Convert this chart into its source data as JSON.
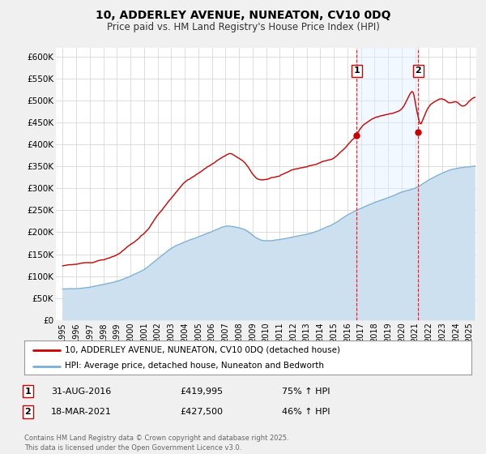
{
  "title": "10, ADDERLEY AVENUE, NUNEATON, CV10 0DQ",
  "subtitle": "Price paid vs. HM Land Registry's House Price Index (HPI)",
  "xlim": [
    1994.5,
    2025.5
  ],
  "ylim": [
    0,
    620000
  ],
  "yticks": [
    0,
    50000,
    100000,
    150000,
    200000,
    250000,
    300000,
    350000,
    400000,
    450000,
    500000,
    550000,
    600000
  ],
  "ytick_labels": [
    "£0",
    "£50K",
    "£100K",
    "£150K",
    "£200K",
    "£250K",
    "£300K",
    "£350K",
    "£400K",
    "£450K",
    "£500K",
    "£550K",
    "£600K"
  ],
  "red_line_color": "#cc0000",
  "blue_line_color": "#7ab0d4",
  "blue_fill_color": "#cce0f0",
  "vline1_x": 2016.67,
  "vline2_x": 2021.21,
  "marker1_x": 2016.67,
  "marker1_y": 419995,
  "marker2_x": 2021.21,
  "marker2_y": 427500,
  "legend_label_red": "10, ADDERLEY AVENUE, NUNEATON, CV10 0DQ (detached house)",
  "legend_label_blue": "HPI: Average price, detached house, Nuneaton and Bedworth",
  "annotation1_label": "1",
  "annotation1_date": "31-AUG-2016",
  "annotation1_price": "£419,995",
  "annotation1_hpi": "75% ↑ HPI",
  "annotation2_label": "2",
  "annotation2_date": "18-MAR-2021",
  "annotation2_price": "£427,500",
  "annotation2_hpi": "46% ↑ HPI",
  "footer": "Contains HM Land Registry data © Crown copyright and database right 2025.\nThis data is licensed under the Open Government Licence v3.0.",
  "background_color": "#f0f0f0",
  "plot_bg_color": "#ffffff",
  "grid_color": "#d0d0d0"
}
